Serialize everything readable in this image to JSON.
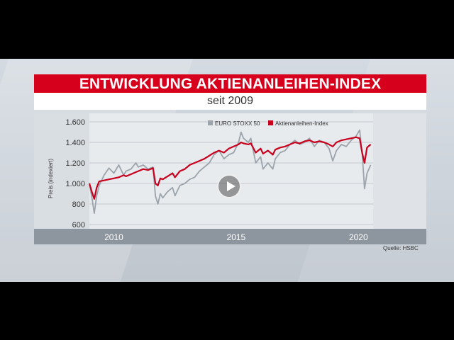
{
  "title": "ENTWICKLUNG AKTIENANLEIHEN-INDEX",
  "subtitle": "seit 2009",
  "source": "Quelle: HSBC",
  "colors": {
    "accent": "#d6001c",
    "stoxx": "#9ba3ab",
    "index": "#c8001e"
  },
  "play_icon": "play-icon",
  "chart_data": {
    "type": "line",
    "title": "",
    "xlabel": "",
    "ylabel": "Preis (indexiert)",
    "ylim": [
      600,
      1600
    ],
    "y_ticks": [
      600,
      800,
      1000,
      1200,
      1400,
      1600
    ],
    "y_tick_labels": [
      "600",
      "800",
      "1.000",
      "1.200",
      "1.400",
      "1.600"
    ],
    "xlim": [
      2009.0,
      2020.6
    ],
    "x_ticks": [
      2010,
      2015,
      2020
    ],
    "x_tick_labels": [
      "2010",
      "2015",
      "2020"
    ],
    "grid": true,
    "legend_position": "top-right",
    "series": [
      {
        "name": "EURO STOXX 50",
        "color": "#9ba3ab",
        "x": [
          2009.0,
          2009.1,
          2009.2,
          2009.3,
          2009.4,
          2009.6,
          2009.8,
          2010.0,
          2010.2,
          2010.4,
          2010.5,
          2010.7,
          2010.9,
          2011.0,
          2011.2,
          2011.4,
          2011.6,
          2011.7,
          2011.8,
          2011.9,
          2012.0,
          2012.2,
          2012.4,
          2012.5,
          2012.7,
          2012.9,
          2013.1,
          2013.3,
          2013.5,
          2013.7,
          2013.9,
          2014.1,
          2014.3,
          2014.5,
          2014.7,
          2014.9,
          2015.1,
          2015.2,
          2015.3,
          2015.5,
          2015.6,
          2015.8,
          2016.0,
          2016.1,
          2016.3,
          2016.5,
          2016.6,
          2016.8,
          2017.0,
          2017.2,
          2017.4,
          2017.6,
          2017.8,
          2018.0,
          2018.2,
          2018.4,
          2018.6,
          2018.8,
          2018.95,
          2019.1,
          2019.3,
          2019.5,
          2019.7,
          2019.9,
          2020.05,
          2020.15,
          2020.25,
          2020.35,
          2020.5
        ],
        "values": [
          1000,
          870,
          710,
          880,
          980,
          1080,
          1150,
          1100,
          1180,
          1080,
          1120,
          1140,
          1200,
          1160,
          1180,
          1140,
          1160,
          880,
          800,
          900,
          860,
          920,
          960,
          880,
          980,
          1000,
          1040,
          1060,
          1120,
          1160,
          1200,
          1280,
          1320,
          1240,
          1280,
          1300,
          1400,
          1500,
          1440,
          1400,
          1440,
          1200,
          1260,
          1140,
          1200,
          1140,
          1240,
          1300,
          1320,
          1380,
          1420,
          1380,
          1400,
          1440,
          1360,
          1420,
          1400,
          1340,
          1220,
          1320,
          1380,
          1360,
          1420,
          1460,
          1520,
          1300,
          950,
          1100,
          1180
        ]
      },
      {
        "name": "Aktienanleihen-Index",
        "color": "#c8001e",
        "x": [
          2009.0,
          2009.1,
          2009.2,
          2009.3,
          2009.4,
          2009.6,
          2009.8,
          2010.0,
          2010.2,
          2010.4,
          2010.5,
          2010.7,
          2010.9,
          2011.0,
          2011.2,
          2011.4,
          2011.6,
          2011.7,
          2011.8,
          2011.9,
          2012.0,
          2012.2,
          2012.4,
          2012.5,
          2012.7,
          2012.9,
          2013.1,
          2013.3,
          2013.5,
          2013.7,
          2013.9,
          2014.1,
          2014.3,
          2014.5,
          2014.7,
          2014.9,
          2015.1,
          2015.2,
          2015.3,
          2015.5,
          2015.6,
          2015.8,
          2016.0,
          2016.1,
          2016.3,
          2016.5,
          2016.6,
          2016.8,
          2017.0,
          2017.2,
          2017.4,
          2017.6,
          2017.8,
          2018.0,
          2018.2,
          2018.4,
          2018.6,
          2018.8,
          2018.95,
          2019.1,
          2019.3,
          2019.5,
          2019.7,
          2019.9,
          2020.05,
          2020.15,
          2020.25,
          2020.35,
          2020.5
        ],
        "values": [
          1000,
          920,
          850,
          960,
          1020,
          1030,
          1040,
          1050,
          1060,
          1080,
          1070,
          1090,
          1110,
          1120,
          1140,
          1130,
          1150,
          1000,
          980,
          1050,
          1040,
          1070,
          1100,
          1060,
          1120,
          1140,
          1180,
          1200,
          1220,
          1240,
          1270,
          1300,
          1320,
          1300,
          1340,
          1360,
          1380,
          1400,
          1390,
          1380,
          1390,
          1300,
          1340,
          1290,
          1320,
          1280,
          1330,
          1350,
          1360,
          1380,
          1400,
          1390,
          1410,
          1420,
          1400,
          1410,
          1400,
          1380,
          1360,
          1400,
          1420,
          1430,
          1440,
          1450,
          1440,
          1300,
          1200,
          1350,
          1380
        ]
      }
    ]
  }
}
